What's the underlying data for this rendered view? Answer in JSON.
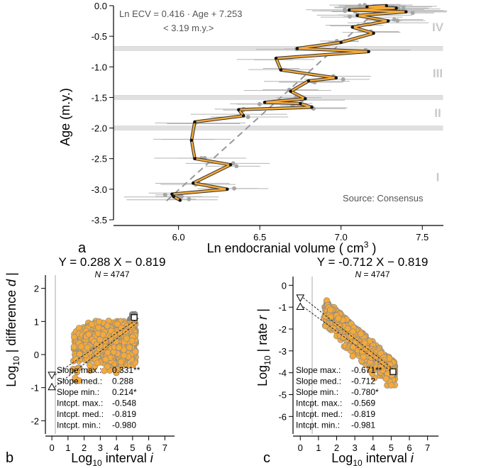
{
  "colors": {
    "accent": "#f4a93a",
    "line_dark": "#222222",
    "gray_pt": "#a6a6a6",
    "band": "#e0e0e0",
    "stage_label": "#c9c9c9"
  },
  "panel_a": {
    "label": "a",
    "equation": "Ln ECV = 0.416 · Age + 7.253",
    "note": "< 3.19 m.y.>",
    "source": "Source: Consensus",
    "stages": [
      "IV",
      "III",
      "II",
      "I"
    ],
    "ylabel": "Age (m.y.)",
    "xlabel": "Ln endocranial volume ( cm³ )"
  },
  "panel_b": {
    "label": "b",
    "equation": "Y = 0.288 X − 0.819",
    "n_label": "N = 4747",
    "ylabel": "Log10 | difference d |",
    "xlabel": "Log10 interval i",
    "stats": [
      {
        "name": "Slope max.:",
        "value": "0.331**"
      },
      {
        "name": "Slope med.:",
        "value": "0.288"
      },
      {
        "name": "Slope min.:",
        "value": "0.214*"
      },
      {
        "name": "Intcpt. max.:",
        "value": "-0.548"
      },
      {
        "name": "Intcpt. med.:",
        "value": "-0.819"
      },
      {
        "name": "Intcpt. min.:",
        "value": "-0.980"
      }
    ]
  },
  "panel_c": {
    "label": "c",
    "equation": "Y = -0.712 X − 0.819",
    "n_label": "N = 4747",
    "ylabel": "Log10 | rate r |",
    "xlabel": "Log10 interval i",
    "stats": [
      {
        "name": "Slope max.:",
        "value": "-0.671**"
      },
      {
        "name": "Slope med.:",
        "value": "-0.712"
      },
      {
        "name": "Slope min.:",
        "value": "-0.780*"
      },
      {
        "name": "Intcpt. max.:",
        "value": "-0.569"
      },
      {
        "name": "Intcpt. med.:",
        "value": "-0.819"
      },
      {
        "name": "Intcpt. min.:",
        "value": "-0.981"
      }
    ]
  },
  "chart_data": [
    {
      "id": "a",
      "type": "line",
      "title": "",
      "xlabel": "Ln endocranial volume (cm3)",
      "ylabel": "Age (m.y.)",
      "xlim": [
        5.6,
        7.63
      ],
      "ylim": [
        -3.5,
        0.0
      ],
      "xticks": [
        6.0,
        6.5,
        7.0,
        7.5
      ],
      "yticks": [
        0.0,
        -0.5,
        -1.0,
        -1.5,
        -2.0,
        -2.5,
        -3.0,
        -3.5
      ],
      "bands_age": [
        -0.7,
        -1.5,
        -2.0
      ],
      "stage_labels": [
        {
          "text": "IV",
          "age": -0.35
        },
        {
          "text": "III",
          "age": -1.1
        },
        {
          "text": "II",
          "age": -1.75
        },
        {
          "text": "I",
          "age": -2.8
        }
      ],
      "trend": {
        "slope_lnecv_per_age": 0.416,
        "intercept": 7.253,
        "age_range": [
          -3.19,
          0.0
        ]
      },
      "consensus_series": [
        {
          "x": 6.01,
          "y": -3.18
        },
        {
          "x": 5.97,
          "y": -3.12
        },
        {
          "x": 5.96,
          "y": -3.08
        },
        {
          "x": 6.3,
          "y": -3.0
        },
        {
          "x": 6.09,
          "y": -2.9
        },
        {
          "x": 6.32,
          "y": -2.6
        },
        {
          "x": 6.1,
          "y": -2.5
        },
        {
          "x": 6.08,
          "y": -2.2
        },
        {
          "x": 6.1,
          "y": -1.9
        },
        {
          "x": 6.4,
          "y": -1.8
        },
        {
          "x": 6.37,
          "y": -1.7
        },
        {
          "x": 6.82,
          "y": -1.66
        },
        {
          "x": 6.75,
          "y": -1.6
        },
        {
          "x": 6.53,
          "y": -1.58
        },
        {
          "x": 6.78,
          "y": -1.52
        },
        {
          "x": 6.69,
          "y": -1.4
        },
        {
          "x": 6.8,
          "y": -1.23
        },
        {
          "x": 6.97,
          "y": -1.18
        },
        {
          "x": 6.63,
          "y": -1.05
        },
        {
          "x": 6.6,
          "y": -0.86
        },
        {
          "x": 7.17,
          "y": -0.75
        },
        {
          "x": 6.73,
          "y": -0.7
        },
        {
          "x": 7.0,
          "y": -0.6
        },
        {
          "x": 7.2,
          "y": -0.45
        },
        {
          "x": 7.07,
          "y": -0.35
        },
        {
          "x": 7.29,
          "y": -0.25
        },
        {
          "x": 7.1,
          "y": -0.16
        },
        {
          "x": 7.4,
          "y": -0.1
        },
        {
          "x": 7.05,
          "y": -0.07
        },
        {
          "x": 7.34,
          "y": -0.04
        },
        {
          "x": 7.16,
          "y": -0.02
        },
        {
          "x": 7.28,
          "y": 0.0
        }
      ]
    },
    {
      "id": "b",
      "type": "scatter",
      "xlabel": "Log10 interval i",
      "ylabel": "Log10 |difference d|",
      "xlim": [
        -0.4,
        7.6
      ],
      "ylim": [
        -2.4,
        2.4
      ],
      "xticks": [
        0,
        1,
        2,
        3,
        4,
        5,
        6,
        7
      ],
      "yticks": [
        -2,
        -1,
        0,
        1,
        2
      ],
      "fit": {
        "slope": 0.288,
        "intercept": -0.819
      },
      "open_triangles": [
        {
          "x": 0,
          "y": -0.62
        },
        {
          "x": 0,
          "y": -0.98
        }
      ],
      "open_square": {
        "x": 5.1,
        "y": 1.12
      }
    },
    {
      "id": "c",
      "type": "scatter",
      "xlabel": "Log10 interval i",
      "ylabel": "Log10 |rate r|",
      "xlim": [
        -0.4,
        7.6
      ],
      "ylim": [
        -6.8,
        0.4
      ],
      "xticks": [
        0,
        1,
        2,
        3,
        4,
        5,
        6,
        7
      ],
      "yticks": [
        0,
        -1,
        -2,
        -3,
        -4,
        -5,
        -6
      ],
      "fit": {
        "slope": -0.712,
        "intercept": -0.819
      },
      "open_triangles": [
        {
          "x": 0,
          "y": -0.57
        },
        {
          "x": 0,
          "y": -0.98
        }
      ],
      "open_square": {
        "x": 5.1,
        "y": -3.95
      }
    }
  ]
}
